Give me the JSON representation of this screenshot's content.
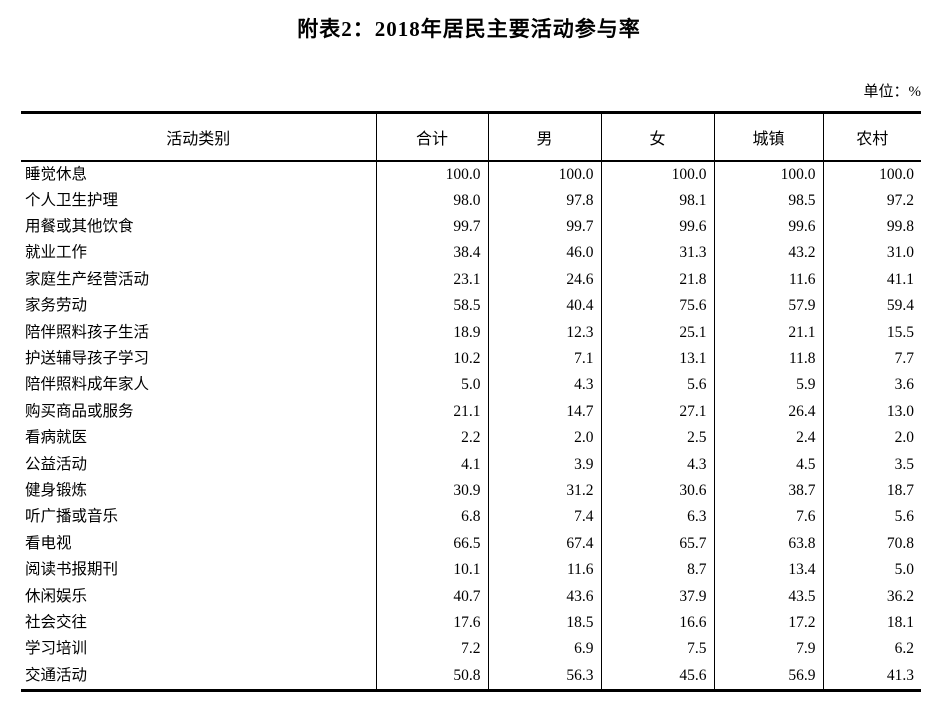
{
  "page": {
    "title": "附表2：2018年居民主要活动参与率",
    "unit_label": "单位：%"
  },
  "table": {
    "columns": [
      "活动类别",
      "合计",
      "男",
      "女",
      "城镇",
      "农村"
    ],
    "rows": [
      {
        "label": "睡觉休息",
        "values": [
          "100.0",
          "100.0",
          "100.0",
          "100.0",
          "100.0"
        ]
      },
      {
        "label": "个人卫生护理",
        "values": [
          "98.0",
          "97.8",
          "98.1",
          "98.5",
          "97.2"
        ]
      },
      {
        "label": "用餐或其他饮食",
        "values": [
          "99.7",
          "99.7",
          "99.6",
          "99.6",
          "99.8"
        ]
      },
      {
        "label": "就业工作",
        "values": [
          "38.4",
          "46.0",
          "31.3",
          "43.2",
          "31.0"
        ]
      },
      {
        "label": "家庭生产经营活动",
        "values": [
          "23.1",
          "24.6",
          "21.8",
          "11.6",
          "41.1"
        ]
      },
      {
        "label": "家务劳动",
        "values": [
          "58.5",
          "40.4",
          "75.6",
          "57.9",
          "59.4"
        ]
      },
      {
        "label": "陪伴照料孩子生活",
        "values": [
          "18.9",
          "12.3",
          "25.1",
          "21.1",
          "15.5"
        ]
      },
      {
        "label": "护送辅导孩子学习",
        "values": [
          "10.2",
          "7.1",
          "13.1",
          "11.8",
          "7.7"
        ]
      },
      {
        "label": "陪伴照料成年家人",
        "values": [
          "5.0",
          "4.3",
          "5.6",
          "5.9",
          "3.6"
        ]
      },
      {
        "label": "购买商品或服务",
        "values": [
          "21.1",
          "14.7",
          "27.1",
          "26.4",
          "13.0"
        ]
      },
      {
        "label": "看病就医",
        "values": [
          "2.2",
          "2.0",
          "2.5",
          "2.4",
          "2.0"
        ]
      },
      {
        "label": "公益活动",
        "values": [
          "4.1",
          "3.9",
          "4.3",
          "4.5",
          "3.5"
        ]
      },
      {
        "label": "健身锻炼",
        "values": [
          "30.9",
          "31.2",
          "30.6",
          "38.7",
          "18.7"
        ]
      },
      {
        "label": "听广播或音乐",
        "values": [
          "6.8",
          "7.4",
          "6.3",
          "7.6",
          "5.6"
        ]
      },
      {
        "label": "看电视",
        "values": [
          "66.5",
          "67.4",
          "65.7",
          "63.8",
          "70.8"
        ]
      },
      {
        "label": "阅读书报期刊",
        "values": [
          "10.1",
          "11.6",
          "8.7",
          "13.4",
          "5.0"
        ]
      },
      {
        "label": "休闲娱乐",
        "values": [
          "40.7",
          "43.6",
          "37.9",
          "43.5",
          "36.2"
        ]
      },
      {
        "label": "社会交往",
        "values": [
          "17.6",
          "18.5",
          "16.6",
          "17.2",
          "18.1"
        ]
      },
      {
        "label": "学习培训",
        "values": [
          "7.2",
          "6.9",
          "7.5",
          "7.9",
          "6.2"
        ]
      },
      {
        "label": "交通活动",
        "values": [
          "50.8",
          "56.3",
          "45.6",
          "56.9",
          "41.3"
        ]
      }
    ]
  }
}
